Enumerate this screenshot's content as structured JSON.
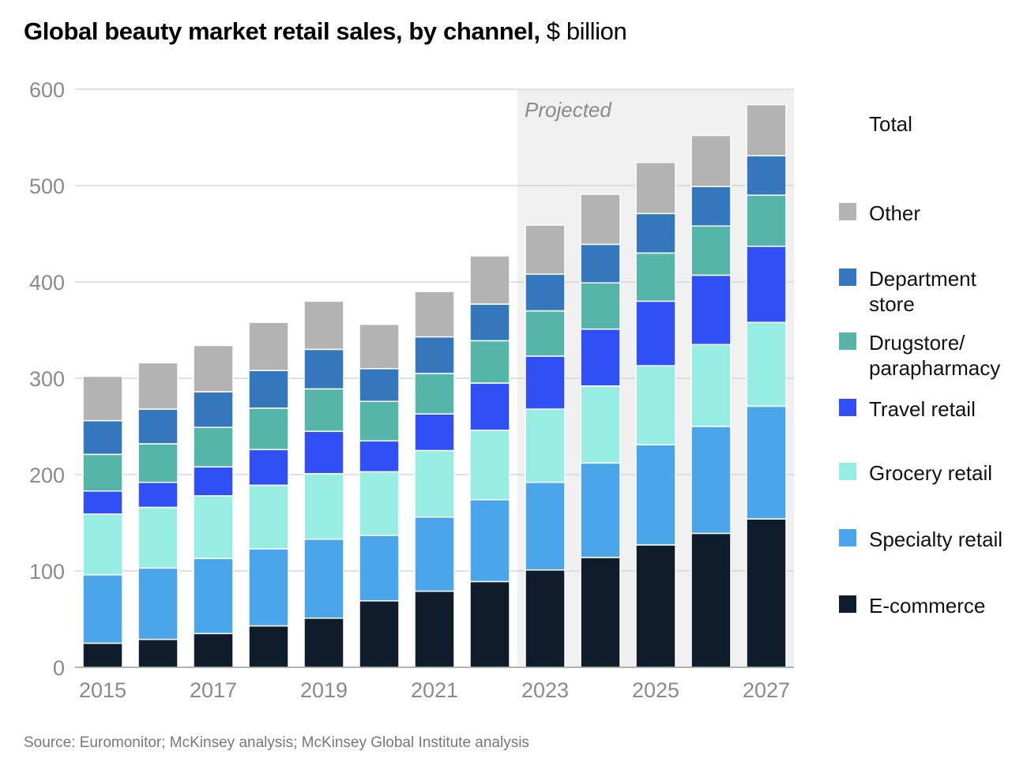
{
  "title": {
    "bold": "Global beauty market retail sales, by channel,",
    "light": " $ billion"
  },
  "projected_label": "Projected",
  "total_label": "Total",
  "source": "Source: Euromonitor; McKinsey analysis; McKinsey Global Institute analysis",
  "chart_data": {
    "type": "bar",
    "stacked": true,
    "title": "Global beauty market retail sales, by channel, $ billion",
    "xlabel": "",
    "ylabel": "$ billion",
    "ylim": [
      0,
      600
    ],
    "yticks": [
      0,
      100,
      200,
      300,
      400,
      500,
      600
    ],
    "grid": true,
    "legend_position": "right",
    "categories": [
      "2015",
      "2016",
      "2017",
      "2018",
      "2019",
      "2020",
      "2021",
      "2022",
      "2023",
      "2024",
      "2025",
      "2026",
      "2027"
    ],
    "xtick_labels": [
      "2015",
      "",
      "2017",
      "",
      "2019",
      "",
      "2021",
      "",
      "2023",
      "",
      "2025",
      "",
      "2027"
    ],
    "projected_from": "2023",
    "series": [
      {
        "name": "E-commerce",
        "color": "#0e1c2c",
        "values": [
          25,
          29,
          35,
          43,
          51,
          69,
          79,
          89,
          101,
          114,
          127,
          139,
          154
        ]
      },
      {
        "name": "Specialty retail",
        "color": "#4ba5ea",
        "values": [
          71,
          74,
          78,
          80,
          82,
          68,
          77,
          85,
          91,
          98,
          104,
          111,
          117
        ]
      },
      {
        "name": "Grocery retail",
        "color": "#98ede3",
        "values": [
          63,
          63,
          65,
          66,
          68,
          66,
          69,
          72,
          76,
          80,
          82,
          85,
          87
        ]
      },
      {
        "name": "Travel retail",
        "color": "#3050f5",
        "values": [
          24,
          26,
          30,
          37,
          44,
          32,
          38,
          49,
          55,
          59,
          67,
          72,
          79
        ]
      },
      {
        "name": "Drugstore/ parapharmacy",
        "color": "#55b5a8",
        "values": [
          38,
          40,
          41,
          43,
          44,
          41,
          42,
          44,
          47,
          48,
          50,
          51,
          53
        ]
      },
      {
        "name": "Department store",
        "color": "#3477bd",
        "values": [
          35,
          36,
          37,
          39,
          41,
          34,
          38,
          38,
          38,
          40,
          41,
          41,
          41
        ]
      },
      {
        "name": "Other",
        "color": "#b3b3b3",
        "values": [
          46,
          48,
          48,
          50,
          50,
          46,
          47,
          50,
          51,
          52,
          53,
          53,
          53
        ]
      }
    ],
    "totals": [
      302,
      316,
      334,
      358,
      380,
      356,
      390,
      427,
      459,
      491,
      524,
      552,
      584
    ]
  },
  "legend": [
    {
      "label": "Other",
      "color": "#b3b3b3"
    },
    {
      "label": "Department store",
      "color": "#3477bd"
    },
    {
      "label": "Drugstore/ parapharmacy",
      "color": "#55b5a8"
    },
    {
      "label": "Travel retail",
      "color": "#3050f5"
    },
    {
      "label": "Grocery retail",
      "color": "#98ede3"
    },
    {
      "label": "Specialty retail",
      "color": "#4ba5ea"
    },
    {
      "label": "E-commerce",
      "color": "#0e1c2c"
    }
  ]
}
